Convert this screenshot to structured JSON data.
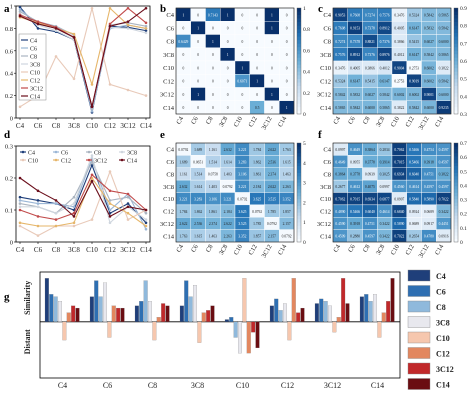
{
  "categories": [
    "C4",
    "C6",
    "C8",
    "3C8",
    "C10",
    "C12",
    "3C12",
    "C14"
  ],
  "series_colors": [
    "#1f3f7a",
    "#2e6fb2",
    "#8fb9dc",
    "#e8e8ee",
    "#f6c7ae",
    "#e2875f",
    "#c1282a",
    "#6a0d12"
  ],
  "line_colors": [
    "#1f3f7a",
    "#9ab6d6",
    "#aab4c0",
    "#cfd6de",
    "#e8c9b8",
    "#e6b66a",
    "#c14a4a",
    "#6a0d1a"
  ],
  "chart_data": [
    {
      "panel": "a",
      "type": "line",
      "categories": [
        "C4",
        "C6",
        "C8",
        "3C8",
        "C10",
        "C12",
        "3C12",
        "C14"
      ],
      "ylim": [
        0,
        1
      ],
      "yticks": [
        "0",
        "0.2",
        "0.4",
        "0.6",
        "0.8",
        "1"
      ],
      "legend_placement": "left",
      "series": [
        {
          "name": "C4",
          "values": [
            0.99,
            0.8,
            0.77,
            0.7,
            0.05,
            0.82,
            0.81,
            0.78
          ]
        },
        {
          "name": "C6",
          "values": [
            0.97,
            0.84,
            0.8,
            0.72,
            0.06,
            0.8,
            0.83,
            0.8
          ]
        },
        {
          "name": "C8",
          "values": [
            0.95,
            0.86,
            0.82,
            0.74,
            0.08,
            0.83,
            0.85,
            0.82
          ]
        },
        {
          "name": "3C8",
          "values": [
            0.93,
            0.83,
            0.78,
            0.7,
            0.1,
            0.81,
            0.8,
            0.76
          ]
        },
        {
          "name": "C10",
          "values": [
            0.1,
            0.2,
            0.55,
            0.35,
            0.98,
            0.3,
            0.25,
            0.2
          ]
        },
        {
          "name": "C12",
          "values": [
            0.9,
            0.85,
            0.8,
            0.75,
            0.3,
            0.98,
            0.83,
            0.8
          ]
        },
        {
          "name": "3C12",
          "values": [
            0.92,
            0.86,
            0.81,
            0.72,
            0.1,
            0.84,
            0.98,
            0.85
          ]
        },
        {
          "name": "C14",
          "values": [
            0.91,
            0.84,
            0.8,
            0.72,
            0.1,
            0.82,
            0.86,
            0.98
          ]
        }
      ]
    },
    {
      "panel": "b",
      "type": "heatmap",
      "labels": [
        "C4",
        "C6",
        "C8",
        "3C8",
        "C10",
        "C12",
        "3C12",
        "C14"
      ],
      "colorbar": [
        "0",
        "0.2",
        "0.4",
        "0.6",
        "0.8",
        "1"
      ],
      "range": [
        0,
        1
      ],
      "cells": [
        [
          "1",
          "0",
          "0.7143",
          "1",
          "0",
          "0",
          "1",
          "0"
        ],
        [
          "0",
          "1",
          "0",
          "0",
          "0",
          "0",
          "1",
          "0"
        ],
        [
          "0.6429",
          "0",
          "1",
          "0",
          "0",
          "0",
          "0",
          "0"
        ],
        [
          "0",
          "0",
          "0",
          "1",
          "0",
          "0",
          "0",
          "0"
        ],
        [
          "0",
          "0",
          "0",
          "0",
          "1",
          "0",
          "0",
          "0"
        ],
        [
          "0",
          "0",
          "0",
          "0",
          "0.6071",
          "1",
          "0",
          "0"
        ],
        [
          "0",
          "1",
          "0",
          "0",
          "0",
          "0",
          "1",
          "0"
        ],
        [
          "0",
          "0",
          "0",
          "0",
          "0",
          "0.5",
          "0",
          "1"
        ]
      ]
    },
    {
      "panel": "c",
      "type": "heatmap",
      "labels": [
        "C4",
        "C6",
        "C8",
        "3C8",
        "C10",
        "C12",
        "3C12",
        "C14"
      ],
      "colorbar": [
        "0.3",
        "0.4",
        "0.5",
        "0.6",
        "0.7",
        "0.8",
        "0.9"
      ],
      "range": [
        0.3,
        0.95
      ],
      "cells": [
        [
          "0.9053",
          "0.7608",
          "0.7274",
          "0.7576",
          "0.3476",
          "0.5324",
          "0.5842",
          "0.5865"
        ],
        [
          "0.7608",
          "0.9153",
          "0.7378",
          "0.8912",
          "0.4005",
          "0.6147",
          "0.5832",
          "0.5842"
        ],
        [
          "0.7274",
          "0.7378",
          "0.8821",
          "0.7376",
          "0.3866",
          "0.5415",
          "0.6027",
          "0.6000"
        ],
        [
          "0.7576",
          "0.8912",
          "0.7376",
          "0.8976",
          "0.4012",
          "0.6147",
          "0.5842",
          "0.5865"
        ],
        [
          "0.3476",
          "0.4005",
          "0.3866",
          "0.4012",
          "0.9004",
          "0.2753",
          "0.6002",
          "0.3822"
        ],
        [
          "0.5324",
          "0.6147",
          "0.5415",
          "0.6147",
          "0.2753",
          "0.9019",
          "0.6002",
          "0.5842"
        ],
        [
          "0.5842",
          "0.5832",
          "0.6027",
          "0.5842",
          "0.6002",
          "0.6002",
          "0.9001",
          "0.6000"
        ],
        [
          "0.5865",
          "0.5842",
          "0.6000",
          "0.5865",
          "0.3822",
          "0.5842",
          "0.6000",
          "0.9235"
        ]
      ]
    },
    {
      "panel": "d",
      "type": "line",
      "categories": [
        "C4",
        "C6",
        "C8",
        "3C8",
        "C10",
        "C12",
        "3C12",
        "C14"
      ],
      "ylim": [
        0,
        0.3
      ],
      "yticks": [
        "0",
        "0.1",
        "0.2",
        "0.3"
      ],
      "legend_placement": "top",
      "series": [
        {
          "name": "C4",
          "values": [
            0.14,
            0.13,
            0.12,
            0.1,
            0.24,
            0.09,
            0.12,
            0.06
          ]
        },
        {
          "name": "C6",
          "values": [
            0.13,
            0.12,
            0.12,
            0.11,
            0.26,
            0.1,
            0.15,
            0.04
          ]
        },
        {
          "name": "C8",
          "values": [
            0.12,
            0.11,
            0.09,
            0.14,
            0.25,
            0.13,
            0.14,
            0.09
          ]
        },
        {
          "name": "3C8",
          "values": [
            0.11,
            0.11,
            0.09,
            0.12,
            0.27,
            0.06,
            0.11,
            0.07
          ]
        },
        {
          "name": "C10",
          "values": [
            0.05,
            0.02,
            0.05,
            0.05,
            0.07,
            0.22,
            0.07,
            0.1
          ]
        },
        {
          "name": "C12",
          "values": [
            0.06,
            0.05,
            0.05,
            0.06,
            0.2,
            0.12,
            0.09,
            0.05
          ]
        },
        {
          "name": "3C12",
          "values": [
            0.1,
            0.08,
            0.07,
            0.09,
            0.21,
            0.16,
            0.15,
            0.1
          ]
        },
        {
          "name": "C14",
          "values": [
            0.2,
            0.16,
            0.13,
            0.08,
            0.19,
            0.08,
            0.11,
            0.1
          ]
        }
      ]
    },
    {
      "panel": "e",
      "type": "heatmap",
      "labels": [
        "C4",
        "C6",
        "C8",
        "3C8",
        "C10",
        "C12",
        "3C12",
        "C14"
      ],
      "colorbar": [
        "0",
        "1",
        "2",
        "3",
        "4",
        "5"
      ],
      "range": [
        0,
        5
      ],
      "cells": [
        [
          "0.0792",
          "1.689",
          "1.161",
          "2.632",
          "3.221",
          "1.784",
          "2.622",
          "1.763"
        ],
        [
          "1.689",
          "0.0651",
          "1.514",
          "1.614",
          "3.283",
          "1.862",
          "2.536",
          "1.615"
        ],
        [
          "1.161",
          "1.514",
          "0.0758",
          "1.403",
          "3.106",
          "1.861",
          "2.374",
          "1.463"
        ],
        [
          "2.632",
          "1.614",
          "1.403",
          "0.0792",
          "3.221",
          "2.184",
          "2.622",
          "2.263"
        ],
        [
          "3.221",
          "3.283",
          "3.106",
          "3.221",
          "0.0792",
          "3.625",
          "3.525",
          "3.352"
        ],
        [
          "1.784",
          "1.862",
          "1.861",
          "2.184",
          "3.625",
          "0.0792",
          "1.785",
          "1.857"
        ],
        [
          "2.622",
          "2.536",
          "2.374",
          "2.622",
          "3.525",
          "1.785",
          "0.0792",
          "2.157"
        ],
        [
          "1.763",
          "1.615",
          "1.463",
          "2.263",
          "3.352",
          "1.857",
          "2.157",
          "0.0792"
        ]
      ]
    },
    {
      "panel": "f",
      "type": "heatmap",
      "labels": [
        "C4",
        "C6",
        "C8",
        "3C8",
        "C10",
        "C12",
        "3C12",
        "C14"
      ],
      "colorbar": [
        "0",
        "0.1",
        "0.2",
        "0.3",
        "0.4",
        "0.5",
        "0.6",
        "0.7"
      ],
      "range": [
        0,
        0.75
      ],
      "cells": [
        [
          "0.0997",
          "0.4649",
          "0.3864",
          "0.2834",
          "0.7062",
          "0.5466",
          "0.4754",
          "0.4597"
        ],
        [
          "0.4649",
          "0.0955",
          "0.3778",
          "0.3914",
          "0.7015",
          "0.5466",
          "0.3918",
          "0.4597"
        ],
        [
          "0.3864",
          "0.3778",
          "0.0939",
          "0.3025",
          "0.6934",
          "0.6040",
          "0.4751",
          "0.3822"
        ],
        [
          "0.2677",
          "0.4612",
          "0.4075",
          "0.0997",
          "0.4560",
          "0.4614",
          "0.4597",
          "0.4597"
        ],
        [
          "0.7062",
          "0.7015",
          "0.6934",
          "0.6877",
          "0.0907",
          "0.5840",
          "0.5890",
          "0.7022"
        ],
        [
          "0.4890",
          "0.5466",
          "0.6040",
          "0.4614",
          "0.6840",
          "0.0924",
          "0.0689",
          "0.3422"
        ],
        [
          "0.4590",
          "0.3918",
          "0.4751",
          "0.3422",
          "0.5890",
          "0.0689",
          "0.0917",
          "0.4451"
        ],
        [
          "0.4509",
          "0.2880",
          "0.4597",
          "0.3422",
          "0.7022",
          "0.2654",
          "0.4780",
          "0.0916"
        ]
      ]
    },
    {
      "panel": "g",
      "type": "bar",
      "categories": [
        "C4",
        "C6",
        "C8",
        "3C8",
        "C10",
        "C12",
        "3C12",
        "C14"
      ],
      "ylabel_top": "Similarity",
      "ylabel_bottom": "Distant",
      "series": [
        {
          "name": "C4",
          "values": [
            0.95,
            0.55,
            0.35,
            0.35,
            0.05,
            0.35,
            0.4,
            0.55
          ]
        },
        {
          "name": "C6",
          "values": [
            0.6,
            0.9,
            0.45,
            0.9,
            0.1,
            0.5,
            0.5,
            0.6
          ]
        },
        {
          "name": "C8",
          "values": [
            0.55,
            0.55,
            0.9,
            0.55,
            -0.3,
            0.25,
            0.45,
            0.45
          ]
        },
        {
          "name": "3C8",
          "values": [
            0.45,
            0.85,
            0.45,
            0.8,
            -0.6,
            0.4,
            0.35,
            0.6
          ]
        },
        {
          "name": "C10",
          "values": [
            -0.35,
            -0.3,
            -0.35,
            -0.4,
            0.95,
            -0.35,
            -0.2,
            -0.3
          ]
        },
        {
          "name": "C12",
          "values": [
            0.2,
            0.35,
            0.1,
            0.2,
            -0.6,
            0.95,
            0.1,
            0.2
          ]
        },
        {
          "name": "3C12",
          "values": [
            0.35,
            0.3,
            0.4,
            0.25,
            -0.2,
            0.2,
            0.95,
            0.45
          ]
        },
        {
          "name": "C14",
          "values": [
            0.3,
            0.3,
            0.35,
            0.35,
            -0.5,
            0.3,
            0.4,
            0.95
          ]
        }
      ]
    }
  ]
}
